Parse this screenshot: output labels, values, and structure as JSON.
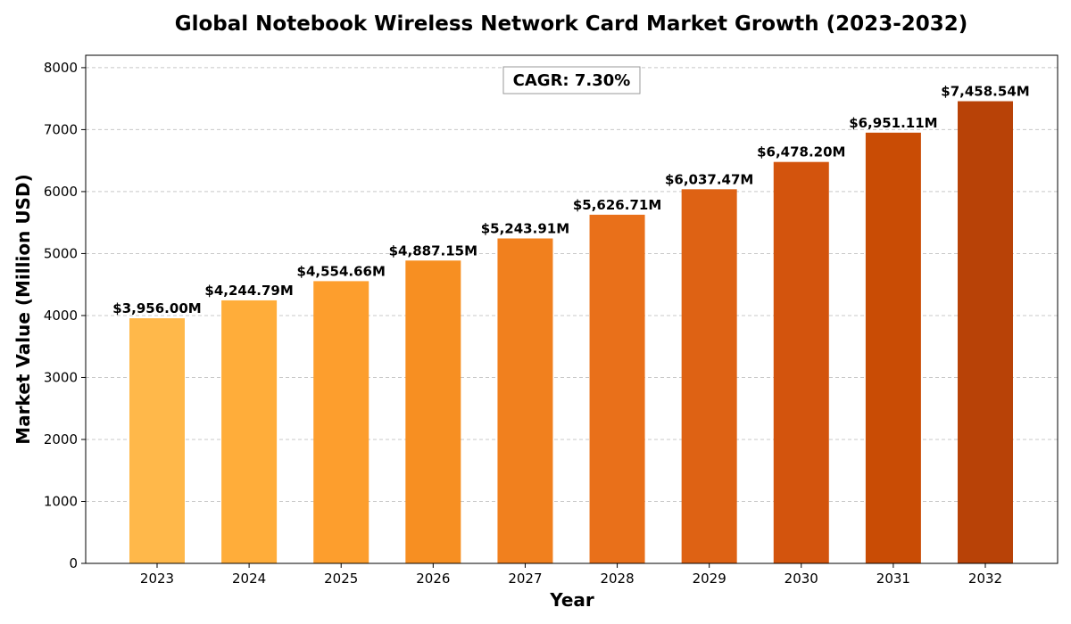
{
  "chart_data": {
    "type": "bar",
    "title": "Global Notebook Wireless Network Card Market Growth (2023-2032)",
    "xlabel": "Year",
    "ylabel": "Market Value (Million USD)",
    "categories": [
      "2023",
      "2024",
      "2025",
      "2026",
      "2027",
      "2028",
      "2029",
      "2030",
      "2031",
      "2032"
    ],
    "values": [
      3956.0,
      4244.79,
      4554.66,
      4887.15,
      5243.91,
      5626.71,
      6037.47,
      6478.2,
      6951.11,
      7458.54
    ],
    "data_labels": [
      "$3,956.00M",
      "$4,244.79M",
      "$4,554.66M",
      "$4,887.15M",
      "$5,243.91M",
      "$5,626.71M",
      "$6,037.47M",
      "$6,478.20M",
      "$6,951.11M",
      "$7,458.54M"
    ],
    "bar_colors": [
      "#ffb84a",
      "#ffad3a",
      "#fd9e2d",
      "#f78f22",
      "#f1801e",
      "#e9701a",
      "#de6214",
      "#d3540d",
      "#c94c05",
      "#b84207"
    ],
    "ylim": [
      0,
      8200
    ],
    "yticks": [
      0,
      1000,
      2000,
      3000,
      4000,
      5000,
      6000,
      7000,
      8000
    ],
    "grid": true,
    "annotation": "CAGR: 7.30%"
  }
}
